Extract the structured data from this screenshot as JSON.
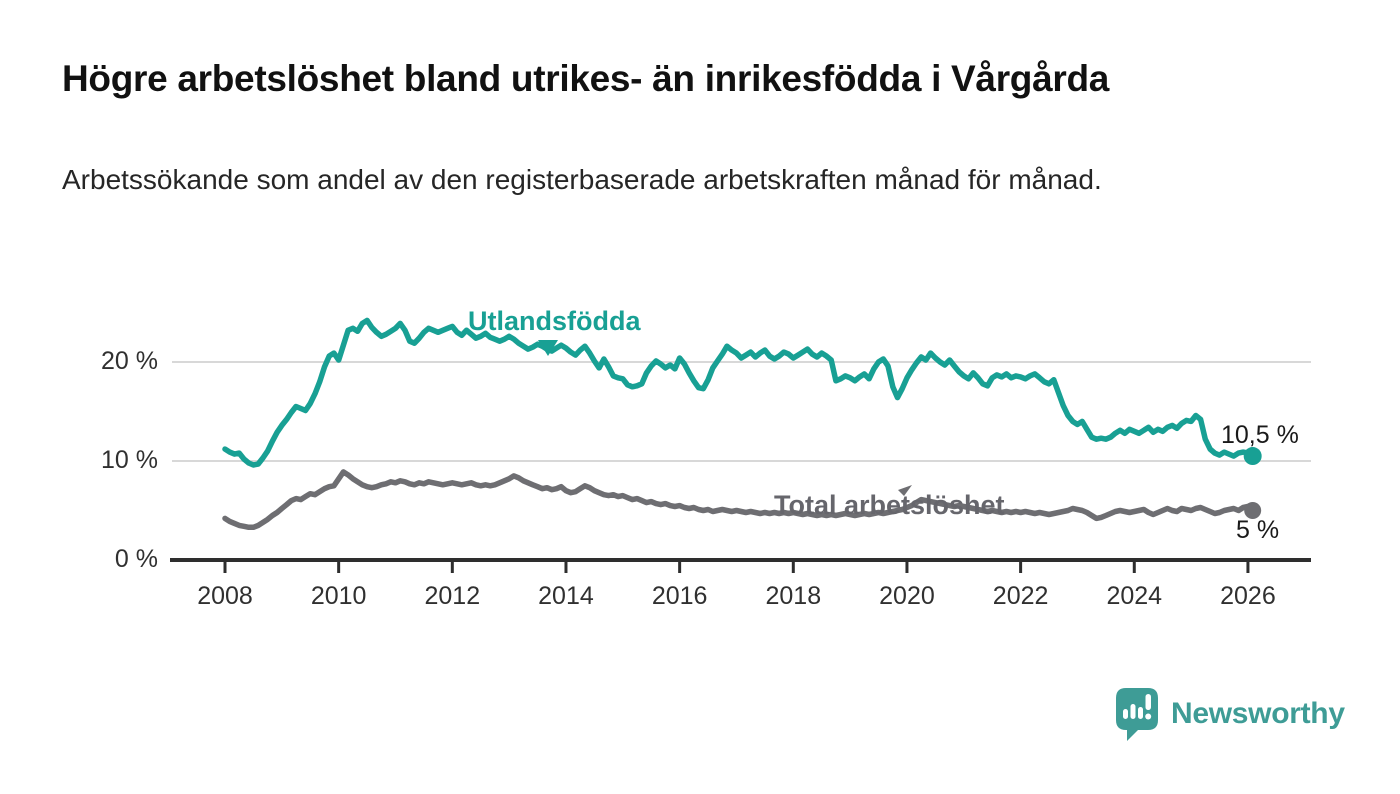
{
  "header": {
    "title": "Högre arbetslöshet bland utrikes- än inrikesfödda i Vårgårda",
    "subtitle": "Arbetssökande som andel av den registerbaserade arbetskraften månad för månad."
  },
  "chart_data": {
    "type": "line",
    "title": "Högre arbetslöshet bland utrikes- än inrikesfödda i Vårgårda",
    "subtitle": "Arbetssökande som andel av den registerbaserade arbetskraften månad för månad.",
    "x_start_year": 2008,
    "x_frequency": "monthly",
    "x_tick_labels": [
      "2008",
      "2010",
      "2012",
      "2014",
      "2016",
      "2018",
      "2020",
      "2022",
      "2024",
      "2026"
    ],
    "y_ticks": [
      0,
      10,
      20
    ],
    "y_tick_labels": [
      "0 %",
      "10 %",
      "20 %"
    ],
    "ylim": [
      0,
      26
    ],
    "grid": "horizontal",
    "legend_position": "inline-labels",
    "series": [
      {
        "name": "Utlandsfödda",
        "color": "#18A094",
        "end_label": "10,5 %",
        "end_value": 10.5,
        "values": [
          11.2,
          10.9,
          10.7,
          10.8,
          10.2,
          9.8,
          9.6,
          9.7,
          10.3,
          11.0,
          12.0,
          12.9,
          13.6,
          14.2,
          14.9,
          15.5,
          15.3,
          15.1,
          15.8,
          16.8,
          18.0,
          19.5,
          20.6,
          20.9,
          20.2,
          21.7,
          23.2,
          23.4,
          23.1,
          23.9,
          24.2,
          23.5,
          23.0,
          22.6,
          22.8,
          23.1,
          23.4,
          23.9,
          23.2,
          22.1,
          21.9,
          22.4,
          23.0,
          23.4,
          23.2,
          23.0,
          23.2,
          23.4,
          23.6,
          23.0,
          22.7,
          23.2,
          22.8,
          22.4,
          22.6,
          22.9,
          22.5,
          22.3,
          22.1,
          22.3,
          22.6,
          22.3,
          21.9,
          21.6,
          21.3,
          21.5,
          21.8,
          21.6,
          21.3,
          21.1,
          21.4,
          21.7,
          21.4,
          21.0,
          20.7,
          21.2,
          21.6,
          20.9,
          20.1,
          19.4,
          20.3,
          19.5,
          18.6,
          18.4,
          18.3,
          17.7,
          17.5,
          17.6,
          17.8,
          18.9,
          19.6,
          20.1,
          19.8,
          19.4,
          19.7,
          19.3,
          20.4,
          19.8,
          18.9,
          18.1,
          17.4,
          17.3,
          18.2,
          19.4,
          20.1,
          20.8,
          21.6,
          21.2,
          20.9,
          20.4,
          20.7,
          21.0,
          20.5,
          20.9,
          21.2,
          20.6,
          20.3,
          20.6,
          21.0,
          20.8,
          20.4,
          20.7,
          21.0,
          21.3,
          20.8,
          20.5,
          20.9,
          20.6,
          20.2,
          18.1,
          18.3,
          18.6,
          18.4,
          18.1,
          18.5,
          18.8,
          18.3,
          19.3,
          20.0,
          20.3,
          19.6,
          17.5,
          16.4,
          17.3,
          18.4,
          19.2,
          19.9,
          20.5,
          20.2,
          20.9,
          20.4,
          20.0,
          19.7,
          20.2,
          19.6,
          19.0,
          18.6,
          18.3,
          18.9,
          18.4,
          17.8,
          17.6,
          18.4,
          18.7,
          18.5,
          18.8,
          18.4,
          18.6,
          18.5,
          18.3,
          18.6,
          18.8,
          18.4,
          18.0,
          17.8,
          18.2,
          16.9,
          15.6,
          14.6,
          14.0,
          13.7,
          14.0,
          13.2,
          12.4,
          12.2,
          12.3,
          12.2,
          12.4,
          12.8,
          13.1,
          12.8,
          13.2,
          13.0,
          12.8,
          13.1,
          13.4,
          12.9,
          13.2,
          13.0,
          13.4,
          13.6,
          13.3,
          13.8,
          14.1,
          14.0,
          14.6,
          14.2,
          12.2,
          11.2,
          10.8,
          10.6,
          10.9,
          10.7,
          10.5,
          10.8,
          10.9,
          10.8,
          10.5
        ]
      },
      {
        "name": "Total arbetslöshet",
        "color": "#6E6E72",
        "end_label": "5 %",
        "end_value": 5,
        "values": [
          4.2,
          3.9,
          3.7,
          3.5,
          3.4,
          3.3,
          3.3,
          3.5,
          3.8,
          4.1,
          4.5,
          4.8,
          5.2,
          5.6,
          6.0,
          6.2,
          6.1,
          6.4,
          6.7,
          6.6,
          6.9,
          7.2,
          7.4,
          7.5,
          8.2,
          8.9,
          8.6,
          8.2,
          7.9,
          7.6,
          7.4,
          7.3,
          7.4,
          7.6,
          7.7,
          7.9,
          7.8,
          8.0,
          7.9,
          7.7,
          7.6,
          7.8,
          7.7,
          7.9,
          7.8,
          7.7,
          7.6,
          7.7,
          7.8,
          7.7,
          7.6,
          7.7,
          7.8,
          7.6,
          7.5,
          7.6,
          7.5,
          7.6,
          7.8,
          8.0,
          8.2,
          8.5,
          8.3,
          8.0,
          7.8,
          7.6,
          7.4,
          7.2,
          7.3,
          7.1,
          7.2,
          7.4,
          7.0,
          6.8,
          6.9,
          7.2,
          7.5,
          7.3,
          7.0,
          6.8,
          6.6,
          6.5,
          6.6,
          6.4,
          6.5,
          6.3,
          6.1,
          6.2,
          6.0,
          5.8,
          5.9,
          5.7,
          5.6,
          5.7,
          5.5,
          5.4,
          5.5,
          5.3,
          5.2,
          5.3,
          5.1,
          5.0,
          5.1,
          4.9,
          5.0,
          5.1,
          5.0,
          4.9,
          5.0,
          4.9,
          4.8,
          4.9,
          4.8,
          4.7,
          4.8,
          4.7,
          4.8,
          4.7,
          4.8,
          4.7,
          4.8,
          4.7,
          4.6,
          4.7,
          4.6,
          4.5,
          4.6,
          4.5,
          4.6,
          4.5,
          4.6,
          4.7,
          4.6,
          4.5,
          4.6,
          4.7,
          4.6,
          4.7,
          4.8,
          4.7,
          4.8,
          4.9,
          5.0,
          5.1,
          5.3,
          5.5,
          5.8,
          6.1,
          6.0,
          5.9,
          5.8,
          5.7,
          5.6,
          5.5,
          5.4,
          5.5,
          5.4,
          5.3,
          5.2,
          5.1,
          5.0,
          4.9,
          5.0,
          4.9,
          4.8,
          4.9,
          4.8,
          4.9,
          4.8,
          4.9,
          4.8,
          4.7,
          4.8,
          4.7,
          4.6,
          4.7,
          4.8,
          4.9,
          5.0,
          5.2,
          5.1,
          5.0,
          4.8,
          4.5,
          4.2,
          4.3,
          4.5,
          4.7,
          4.9,
          5.0,
          4.9,
          4.8,
          4.9,
          5.0,
          5.1,
          4.8,
          4.6,
          4.8,
          5.0,
          5.2,
          5.0,
          4.9,
          5.2,
          5.1,
          5.0,
          5.2,
          5.3,
          5.1,
          4.9,
          4.7,
          4.8,
          5.0,
          5.1,
          5.2,
          5.0,
          5.3,
          5.4,
          5.0
        ]
      }
    ]
  },
  "colors": {
    "teal": "#18A094",
    "gray": "#6E6E72",
    "axis": "#2E2E2E",
    "gridline": "#D8D8D8",
    "text": "#1A1A1A"
  },
  "footer": {
    "brand": "Newsworthy"
  }
}
